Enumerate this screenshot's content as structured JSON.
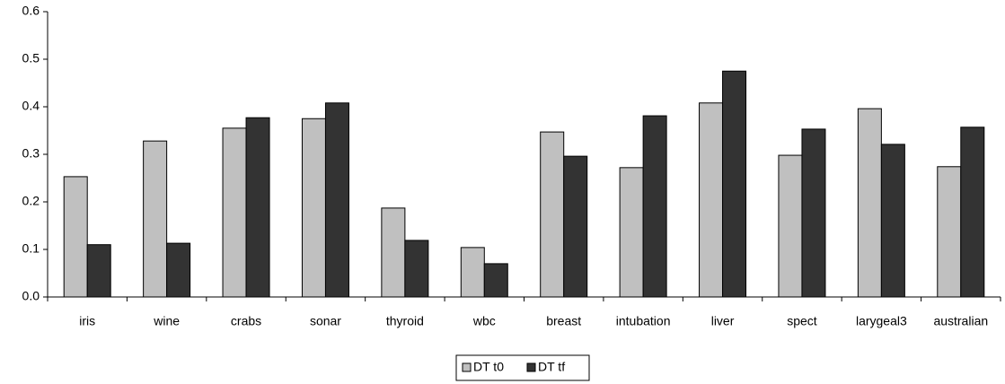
{
  "chart_data": {
    "type": "bar",
    "categories": [
      "iris",
      "wine",
      "crabs",
      "sonar",
      "thyroid",
      "wbc",
      "breast",
      "intubation",
      "liver",
      "spect",
      "larygeal3",
      "australian"
    ],
    "series": [
      {
        "name": "DT t0",
        "color": "#c0c0c0",
        "values": [
          0.253,
          0.328,
          0.355,
          0.375,
          0.187,
          0.104,
          0.347,
          0.272,
          0.408,
          0.298,
          0.396,
          0.274
        ]
      },
      {
        "name": "DT tf",
        "color": "#333333",
        "values": [
          0.11,
          0.113,
          0.377,
          0.408,
          0.119,
          0.07,
          0.296,
          0.381,
          0.475,
          0.353,
          0.321,
          0.357
        ]
      }
    ],
    "ylim": [
      0,
      0.6
    ],
    "yticks": [
      {
        "value": 0,
        "label": "0.0"
      },
      0.1,
      0.2,
      0.3,
      0.4,
      0.5,
      0.6
    ],
    "grid": false,
    "legend": "bottom"
  }
}
